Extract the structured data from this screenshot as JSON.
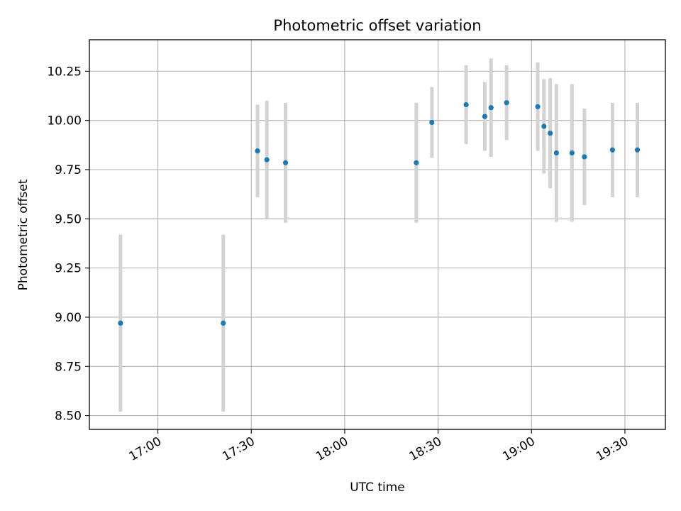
{
  "chart_data": {
    "type": "scatter",
    "title": "Photometric offset variation",
    "xlabel": "UTC time",
    "ylabel": "Photometric offset",
    "x_tick_labels": [
      "17:00",
      "17:30",
      "18:00",
      "18:30",
      "19:00",
      "19:30"
    ],
    "y_tick_labels": [
      "8.50",
      "8.75",
      "9.00",
      "9.25",
      "9.50",
      "9.75",
      "10.00",
      "10.25"
    ],
    "xlim": [
      "16:38",
      "19:43"
    ],
    "ylim": [
      8.43,
      10.41
    ],
    "grid": true,
    "legend": "none",
    "series": [
      {
        "points": [
          {
            "x": "16:48",
            "y": 8.97,
            "err": 0.45
          },
          {
            "x": "17:21",
            "y": 8.97,
            "err": 0.45
          },
          {
            "x": "17:32",
            "y": 9.845,
            "err": 0.235
          },
          {
            "x": "17:35",
            "y": 9.8,
            "err": 0.3
          },
          {
            "x": "17:41",
            "y": 9.785,
            "err": 0.305
          },
          {
            "x": "18:23",
            "y": 9.785,
            "err": 0.305
          },
          {
            "x": "18:28",
            "y": 9.99,
            "err": 0.18
          },
          {
            "x": "18:39",
            "y": 10.08,
            "err": 0.2
          },
          {
            "x": "18:45",
            "y": 10.02,
            "err": 0.175
          },
          {
            "x": "18:47",
            "y": 10.065,
            "err": 0.25
          },
          {
            "x": "18:52",
            "y": 10.09,
            "err": 0.19
          },
          {
            "x": "19:02",
            "y": 10.07,
            "err": 0.225
          },
          {
            "x": "19:04",
            "y": 9.97,
            "err": 0.24
          },
          {
            "x": "19:06",
            "y": 9.935,
            "err": 0.28
          },
          {
            "x": "19:08",
            "y": 9.835,
            "err": 0.35
          },
          {
            "x": "19:13",
            "y": 9.835,
            "err": 0.35
          },
          {
            "x": "19:17",
            "y": 9.815,
            "err": 0.245
          },
          {
            "x": "19:26",
            "y": 9.85,
            "err": 0.24
          },
          {
            "x": "19:34",
            "y": 9.85,
            "err": 0.24
          }
        ]
      }
    ],
    "colors": {
      "point": "#1f77b4",
      "errorbar": "#d3d3d3",
      "grid": "#b0b0b0",
      "axes": "#000000"
    }
  }
}
